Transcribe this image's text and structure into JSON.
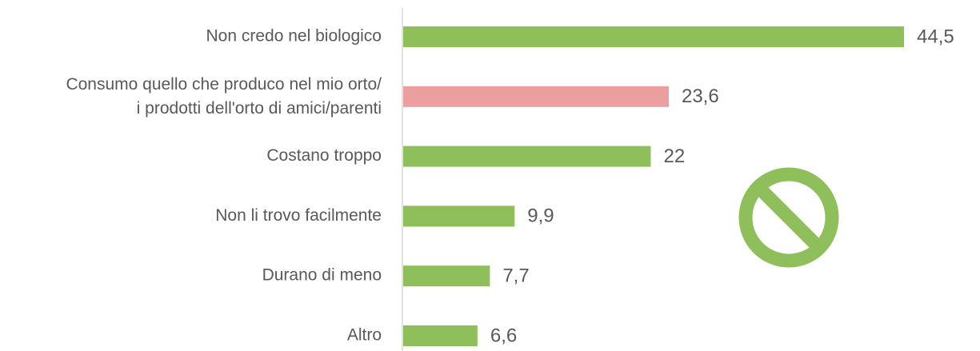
{
  "chart_data": {
    "type": "bar",
    "orientation": "horizontal",
    "categories": [
      "Non credo nel biologico",
      [
        "Consumo quello che produco nel mio orto/",
        "i prodotti dell'orto di amici/parenti"
      ],
      "Costano troppo",
      "Non li trovo facilmente",
      "Durano di meno",
      "Altro"
    ],
    "values": [
      44.5,
      23.6,
      22,
      9.9,
      7.7,
      6.6
    ],
    "value_labels": [
      "44,5",
      "23,6",
      "22",
      "9,9",
      "7,7",
      "6,6"
    ],
    "colors": [
      "#8fbf5a",
      "#eb9f9f",
      "#8fbf5a",
      "#8fbf5a",
      "#8fbf5a",
      "#8fbf5a"
    ]
  }
}
